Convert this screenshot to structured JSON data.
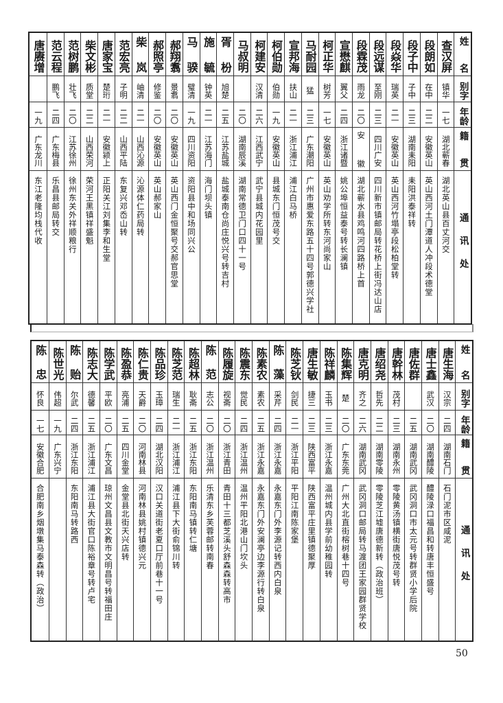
{
  "header": {
    "name": "姓名",
    "alias": "别字",
    "age": "年龄",
    "origin": "籍贯",
    "address": "通讯处"
  },
  "tables": [
    {
      "rows": [
        {
          "name": "查汉屏",
          "alias": "镇华",
          "age": "一七",
          "origin": "湖北蕲春",
          "address": "湖北英山县百丈河交"
        },
        {
          "name": "段朗如",
          "alias": "在中",
          "age": "二二",
          "origin": "安徽英山",
          "address": "英山西河土门潭道人冲段术德堂"
        },
        {
          "name": "段子中",
          "alias": "子中",
          "age": "二三",
          "origin": "湖南耒阳",
          "address": "耒阳洪泰祥转"
        },
        {
          "name": "段焱华",
          "alias": "瑞英",
          "age": "二一",
          "origin": "安徽英山",
          "address": "英山西河竹塌亭段松柏堂转"
        },
        {
          "name": "段远谋",
          "alias": "至刚",
          "age": "二三",
          "origin": "四川广安",
          "address": "四川新市镇邮局转花桥上街冯达山店"
        },
        {
          "name": "段霖茂",
          "alias": "雨龙",
          "age": "二〇",
          "origin": "安徽",
          "address": "湖北蕲水县鸡鸣河四路桥上首"
        },
        {
          "name": "宣懋麒",
          "alias": "翼父",
          "age": "二四",
          "origin": "浙江诸暨",
          "address": "姚公埠恒益泰号转长澜镇"
        },
        {
          "name": "柯正华",
          "alias": "树芳",
          "age": "一七",
          "origin": "安徽英山",
          "address": "英山劝学所转东河尚家山"
        },
        {
          "name": "马耐园",
          "alias": "猛",
          "age": "二三",
          "origin": "广东潮阳",
          "address": "广州市惠爱东路五十四号郭德兴学社"
        },
        {
          "name": "宣邦海",
          "alias": "扶山",
          "age": "二一",
          "origin": "浙江浦江",
          "address": "浦江白马桥"
        },
        {
          "name": "柯伯勋",
          "alias": "伯勋",
          "age": "一九",
          "origin": "安徽英山",
          "address": "县城东门恒茂号交"
        },
        {
          "name": "柯建安",
          "alias": "汉清",
          "age": "二六",
          "origin": "江西武宁",
          "address": "武宁县城内花园里"
        },
        {
          "name": "马叔明",
          "alias": "",
          "age": "二〇",
          "origin": "湖南辰溪",
          "address": "湖南常德卫门口四十一号"
        },
        {
          "name": "胥枌",
          "alias": "旭楚",
          "age": "二五",
          "origin": "江苏盐城",
          "address": "盐城泰南仓尚庄悦兴号转吉村"
        },
        {
          "name": "施毓",
          "alias": "钟英",
          "age": "二一",
          "origin": "江苏海门",
          "address": "海门坝头镇"
        },
        {
          "name": "马骙",
          "alias": "璧清",
          "age": "一九",
          "origin": "四川资阳",
          "address": "资阳县中和场同兴公"
        },
        {
          "name": "郝翔翥",
          "alias": "景翥",
          "age": "二〇",
          "origin": "安徽英山",
          "address": "英山西门金恒聚号交郝官思堂"
        },
        {
          "name": "郝照亭",
          "alias": "修鉴",
          "age": "二〇",
          "origin": "安徽英山",
          "address": "英山郝家山"
        },
        {
          "name": "柴岚",
          "alias": "岫清",
          "age": "二一",
          "origin": "山西沁源",
          "address": "沁源体仁药局转"
        },
        {
          "name": "范宏亮",
          "alias": "子明",
          "age": "二二",
          "origin": "山西平陆",
          "address": "东复兴邓岙山转"
        },
        {
          "name": "唐家宝",
          "alias": "楚珩",
          "age": "二一",
          "origin": "安徽颍上",
          "address": "正阳关江刘集李和生堂"
        },
        {
          "name": "柴文彬",
          "alias": "质堂",
          "age": "二二",
          "origin": "山西荣河",
          "address": "荣河王黑镇祥盛魁"
        },
        {
          "name": "范树鹏",
          "alias": "壮飞",
          "age": "二〇",
          "origin": "江苏徐州",
          "address": "徐州东关外祥顺粮行"
        },
        {
          "name": "范云程",
          "alias": "鹏飞",
          "age": "二四",
          "origin": "广东梅县",
          "address": "乐昌县邮局转交"
        },
        {
          "name": "唐赓增",
          "alias": "",
          "age": "一九",
          "origin": "广东龙川",
          "address": "东江老隆均栈代收"
        }
      ]
    },
    {
      "rows": [
        {
          "name": "唐生海",
          "alias": "汉宗",
          "age": "二四",
          "origin": "湖南石门",
          "address": "石门泥市区咸泥"
        },
        {
          "name": "唐士鑫",
          "alias": "武汉",
          "age": "二〇",
          "origin": "湖南醴陵",
          "address": "醴陵渌口福昌和转唐丰恒盛号"
        },
        {
          "name": "唐佐群",
          "alias": "",
          "age": "二五",
          "origin": "湖南武冈",
          "address": "武冈洞口市太元号转群贤小学后院"
        },
        {
          "name": "唐幹林",
          "alias": "茂村",
          "age": "二三",
          "origin": "湖南永州",
          "address": "零陵黄汤镇横街唐悦茂号转"
        },
        {
          "name": "唐绍尧",
          "alias": "哲先",
          "age": "二二",
          "origin": "湖南零陵",
          "address": "零陵芝江墟唐德新转（政治班）"
        },
        {
          "name": "唐克明",
          "alias": "齐之",
          "age": "二六",
          "origin": "湖南武冈",
          "address": "武冈洞口邮局转马渡团王家园群贤学校"
        },
        {
          "name": "陈集辉",
          "alias": "楚",
          "age": "二〇",
          "origin": "广东东莞",
          "address": "广州大北直街榕树巷十四号"
        },
        {
          "name": "陈祥麟",
          "alias": "玉书",
          "age": "二三",
          "origin": "浙江永嘉",
          "address": "温州城内县学前幼稚园转"
        },
        {
          "name": "唐生敏",
          "alias": "捷三",
          "age": "二三",
          "origin": "陕西富平",
          "address": "陕西富平庄里镇德聚厚"
        },
        {
          "name": "陈芝钬",
          "alias": "剑民",
          "age": "二一",
          "origin": "浙江平阳",
          "address": "平阳江南陈家堡"
        },
        {
          "name": "陈藻",
          "alias": "采芹",
          "age": "二四",
          "origin": "浙江永嘉",
          "address": "永嘉东门外李源记转西内白泉"
        },
        {
          "name": "陈素农",
          "alias": "素农",
          "age": "二五",
          "origin": "浙江永嘉",
          "address": "永嘉东门外安澜亭边李源行转白泉"
        },
        {
          "name": "陈震东",
          "alias": "觉民",
          "age": "二四",
          "origin": "浙江温州",
          "address": "温州平阳北港山门坎头"
        },
        {
          "name": "陈履旋",
          "alias": "视斋",
          "age": "二〇",
          "origin": "浙江青田",
          "address": "青田十三都芝溪头舒森森转高市"
        },
        {
          "name": "陈范",
          "alias": "志公",
          "age": "二〇",
          "origin": "浙江温州",
          "address": "乐清东乡芙蓉邮转南春"
        },
        {
          "name": "陈超林",
          "alias": "耿斋",
          "age": "二五",
          "origin": "浙江东阳",
          "address": "东阳南马镇转仁塘"
        },
        {
          "name": "陈芝范",
          "alias": "瑞生",
          "age": "二一",
          "origin": "浙江浦江",
          "address": "浦江县下大街俞锦川转"
        },
        {
          "name": "陈品珍",
          "alias": "玉璋",
          "age": "二四",
          "origin": "湖北汉阳",
          "address": "汉口关道街老夏口厅前巷十一号"
        },
        {
          "name": "陈仁贵",
          "alias": "天爵",
          "age": "二〇",
          "origin": "河南林县",
          "address": "河南林县姚村镇德兴元"
        },
        {
          "name": "陈盈恭",
          "alias": "亮浦",
          "age": "二五",
          "origin": "四川金堂",
          "address": "金堂县北街天兴店转"
        },
        {
          "name": "陈学武",
          "alias": "平欧",
          "age": "二〇",
          "origin": "广东文昌",
          "address": "琼州文昌县文教市文明昌号转福田庄"
        },
        {
          "name": "陈志大",
          "alias": "德馨",
          "age": "二五",
          "origin": "浙江浦江",
          "address": "浦江县大街官口陈裕章号转卢宅"
        },
        {
          "name": "陈贻",
          "alias": "尔武",
          "age": "二四",
          "origin": "浙江东阳",
          "address": "东阳南马转路西"
        },
        {
          "name": "陈世光",
          "alias": "伟超",
          "age": "一九",
          "origin": "广东兴宁",
          "address": ""
        },
        {
          "name": "陈忠",
          "alias": "怀良",
          "age": "一七",
          "origin": "安徽合肥",
          "address": "合肥南乡烟墩集马泰森转（政治）"
        }
      ]
    }
  ],
  "page_number": "50"
}
